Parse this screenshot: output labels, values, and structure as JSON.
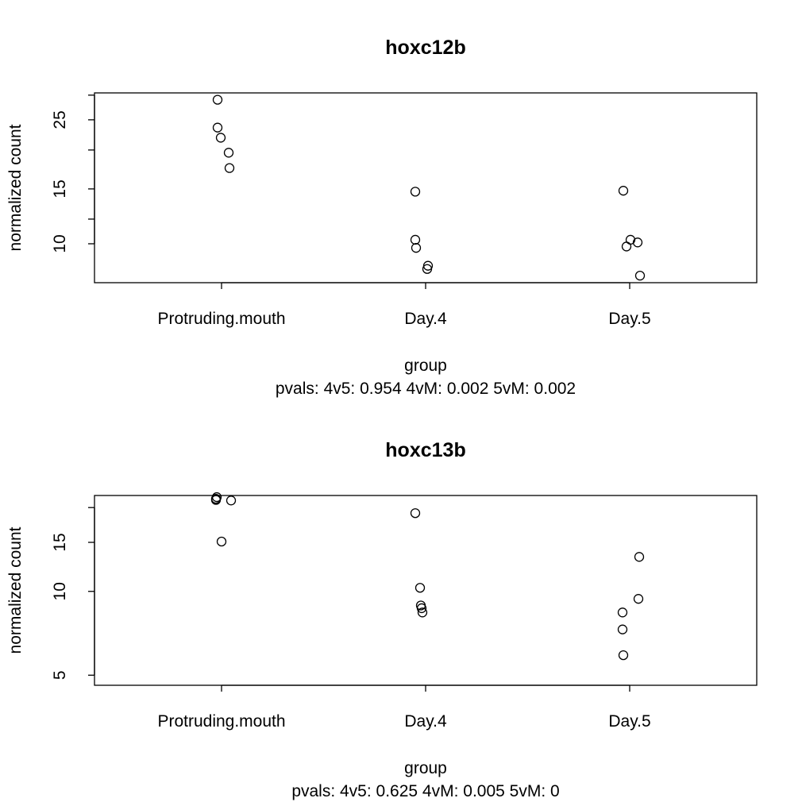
{
  "chart_data": [
    {
      "type": "scatter",
      "title": "hoxc12b",
      "xlabel": "group",
      "subtitle": "pvals: 4v5: 0.954 4vM: 0.002 5vM: 0.002",
      "ylabel": "normalized count",
      "categories": [
        "Protruding.mouth",
        "Day.4",
        "Day.5"
      ],
      "log_y": true,
      "yticks": [
        10,
        15,
        25
      ],
      "ylim": [
        7.5,
        30.5
      ],
      "points": [
        {
          "group": "Protruding.mouth",
          "y": 29.0
        },
        {
          "group": "Protruding.mouth",
          "y": 23.6
        },
        {
          "group": "Protruding.mouth",
          "y": 21.9
        },
        {
          "group": "Protruding.mouth",
          "y": 19.6
        },
        {
          "group": "Protruding.mouth",
          "y": 17.5
        },
        {
          "group": "Day.4",
          "y": 14.7
        },
        {
          "group": "Day.4",
          "y": 10.3
        },
        {
          "group": "Day.4",
          "y": 9.7
        },
        {
          "group": "Day.4",
          "y": 8.5
        },
        {
          "group": "Day.4",
          "y": 8.3
        },
        {
          "group": "Day.5",
          "y": 14.8
        },
        {
          "group": "Day.5",
          "y": 10.3
        },
        {
          "group": "Day.5",
          "y": 10.1
        },
        {
          "group": "Day.5",
          "y": 9.8
        },
        {
          "group": "Day.5",
          "y": 7.9
        }
      ]
    },
    {
      "type": "scatter",
      "title": "hoxc13b",
      "xlabel": "group",
      "subtitle": "pvals: 4v5: 0.625 4vM: 0.005 5vM: 0",
      "ylabel": "normalized count",
      "categories": [
        "Protruding.mouth",
        "Day.4",
        "Day.5"
      ],
      "log_y": true,
      "yticks": [
        5,
        10,
        15
      ],
      "ylim": [
        4.6,
        22.1
      ],
      "points": [
        {
          "group": "Protruding.mouth",
          "y": 21.8
        },
        {
          "group": "Protruding.mouth",
          "y": 21.5
        },
        {
          "group": "Protruding.mouth",
          "y": 21.3
        },
        {
          "group": "Protruding.mouth",
          "y": 21.2
        },
        {
          "group": "Protruding.mouth",
          "y": 15.1
        },
        {
          "group": "Day.4",
          "y": 19.1
        },
        {
          "group": "Day.4",
          "y": 10.3
        },
        {
          "group": "Day.4",
          "y": 8.9
        },
        {
          "group": "Day.4",
          "y": 8.7
        },
        {
          "group": "Day.4",
          "y": 8.4
        },
        {
          "group": "Day.5",
          "y": 13.3
        },
        {
          "group": "Day.5",
          "y": 9.4
        },
        {
          "group": "Day.5",
          "y": 8.4
        },
        {
          "group": "Day.5",
          "y": 7.3
        },
        {
          "group": "Day.5",
          "y": 5.9
        }
      ]
    }
  ]
}
